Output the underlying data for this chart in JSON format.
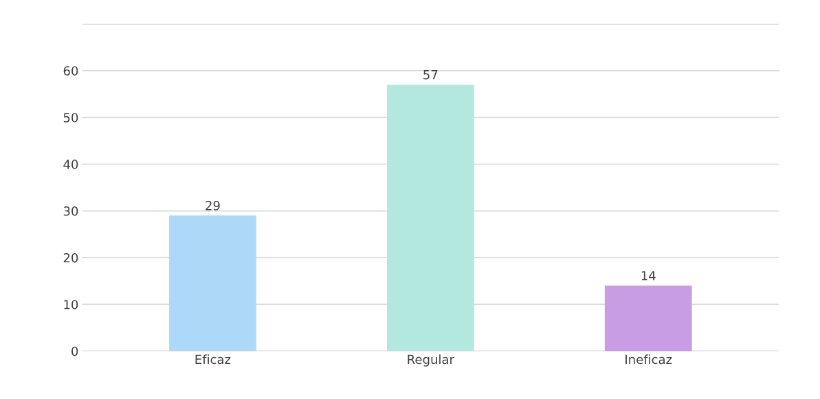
{
  "chart_data": {
    "type": "bar",
    "categories": [
      "Eficaz",
      "Regular",
      "Ineficaz"
    ],
    "values": [
      29,
      57,
      14
    ],
    "colors": [
      "#add8f7",
      "#b3e8de",
      "#c89de3"
    ],
    "ylim": [
      0,
      70
    ],
    "yticks": [
      0,
      10,
      20,
      30,
      40,
      50,
      60,
      {
        "value": 70,
        "label": null
      }
    ],
    "grid": "y",
    "data_labels": true
  }
}
